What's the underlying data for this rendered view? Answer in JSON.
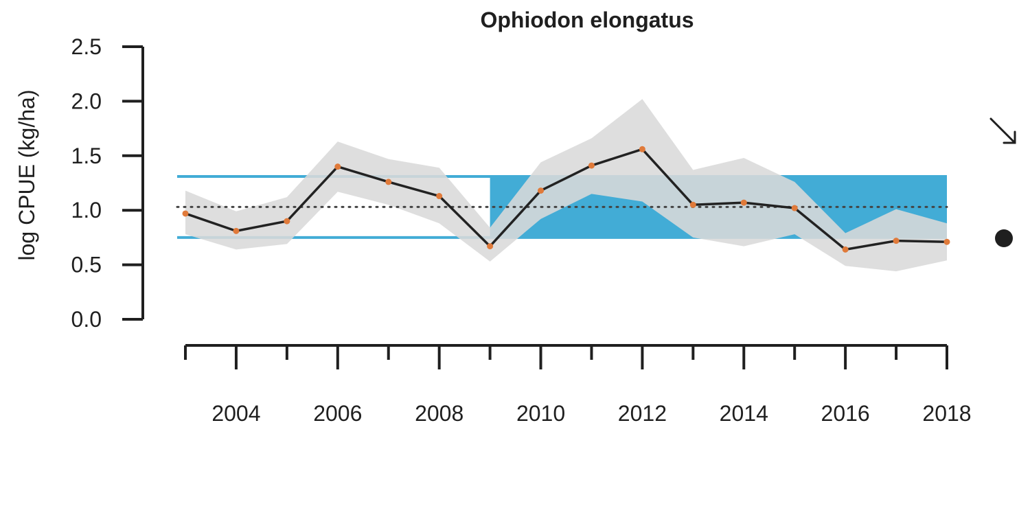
{
  "chart_data": {
    "type": "line",
    "title": "Ophiodon elongatus",
    "ylabel": "log CPUE (kg/ha)",
    "xlabel": "",
    "xlim": [
      2003,
      2018
    ],
    "ylim": [
      0,
      2.5
    ],
    "x_ticks_major": [
      2004,
      2006,
      2008,
      2010,
      2012,
      2014,
      2016,
      2018
    ],
    "x_ticks_minor": [
      2003,
      2005,
      2007,
      2009,
      2011,
      2013,
      2015,
      2017
    ],
    "y_ticks": [
      "0.0",
      "0.5",
      "1.0",
      "1.5",
      "2.0",
      "2.5"
    ],
    "x": [
      2003,
      2004,
      2005,
      2006,
      2007,
      2008,
      2009,
      2010,
      2011,
      2012,
      2013,
      2014,
      2015,
      2016,
      2017,
      2018
    ],
    "series": [
      {
        "values": [
          0.97,
          0.81,
          0.9,
          1.4,
          1.26,
          1.13,
          0.67,
          1.18,
          1.41,
          1.56,
          1.05,
          1.07,
          1.02,
          0.64,
          0.72,
          0.71
        ],
        "upper": [
          1.18,
          0.99,
          1.12,
          1.63,
          1.47,
          1.39,
          0.84,
          1.44,
          1.66,
          2.02,
          1.37,
          1.48,
          1.26,
          0.79,
          1.01,
          0.88
        ],
        "lower": [
          0.78,
          0.64,
          0.69,
          1.17,
          1.05,
          0.88,
          0.53,
          0.92,
          1.15,
          1.08,
          0.75,
          0.67,
          0.78,
          0.49,
          0.44,
          0.54
        ]
      }
    ],
    "mean": 1.03,
    "upper_sd": 1.31,
    "lower_sd": 0.75,
    "recent_window": [
      2009,
      2018
    ],
    "trend_indicator": "arrow-down-right",
    "mean_indicator": "below",
    "colors": {
      "band": "#42acd6",
      "ci": "#d9d9d9",
      "line": "#222222",
      "points": "#e07a3a",
      "mean": "#444444"
    }
  }
}
